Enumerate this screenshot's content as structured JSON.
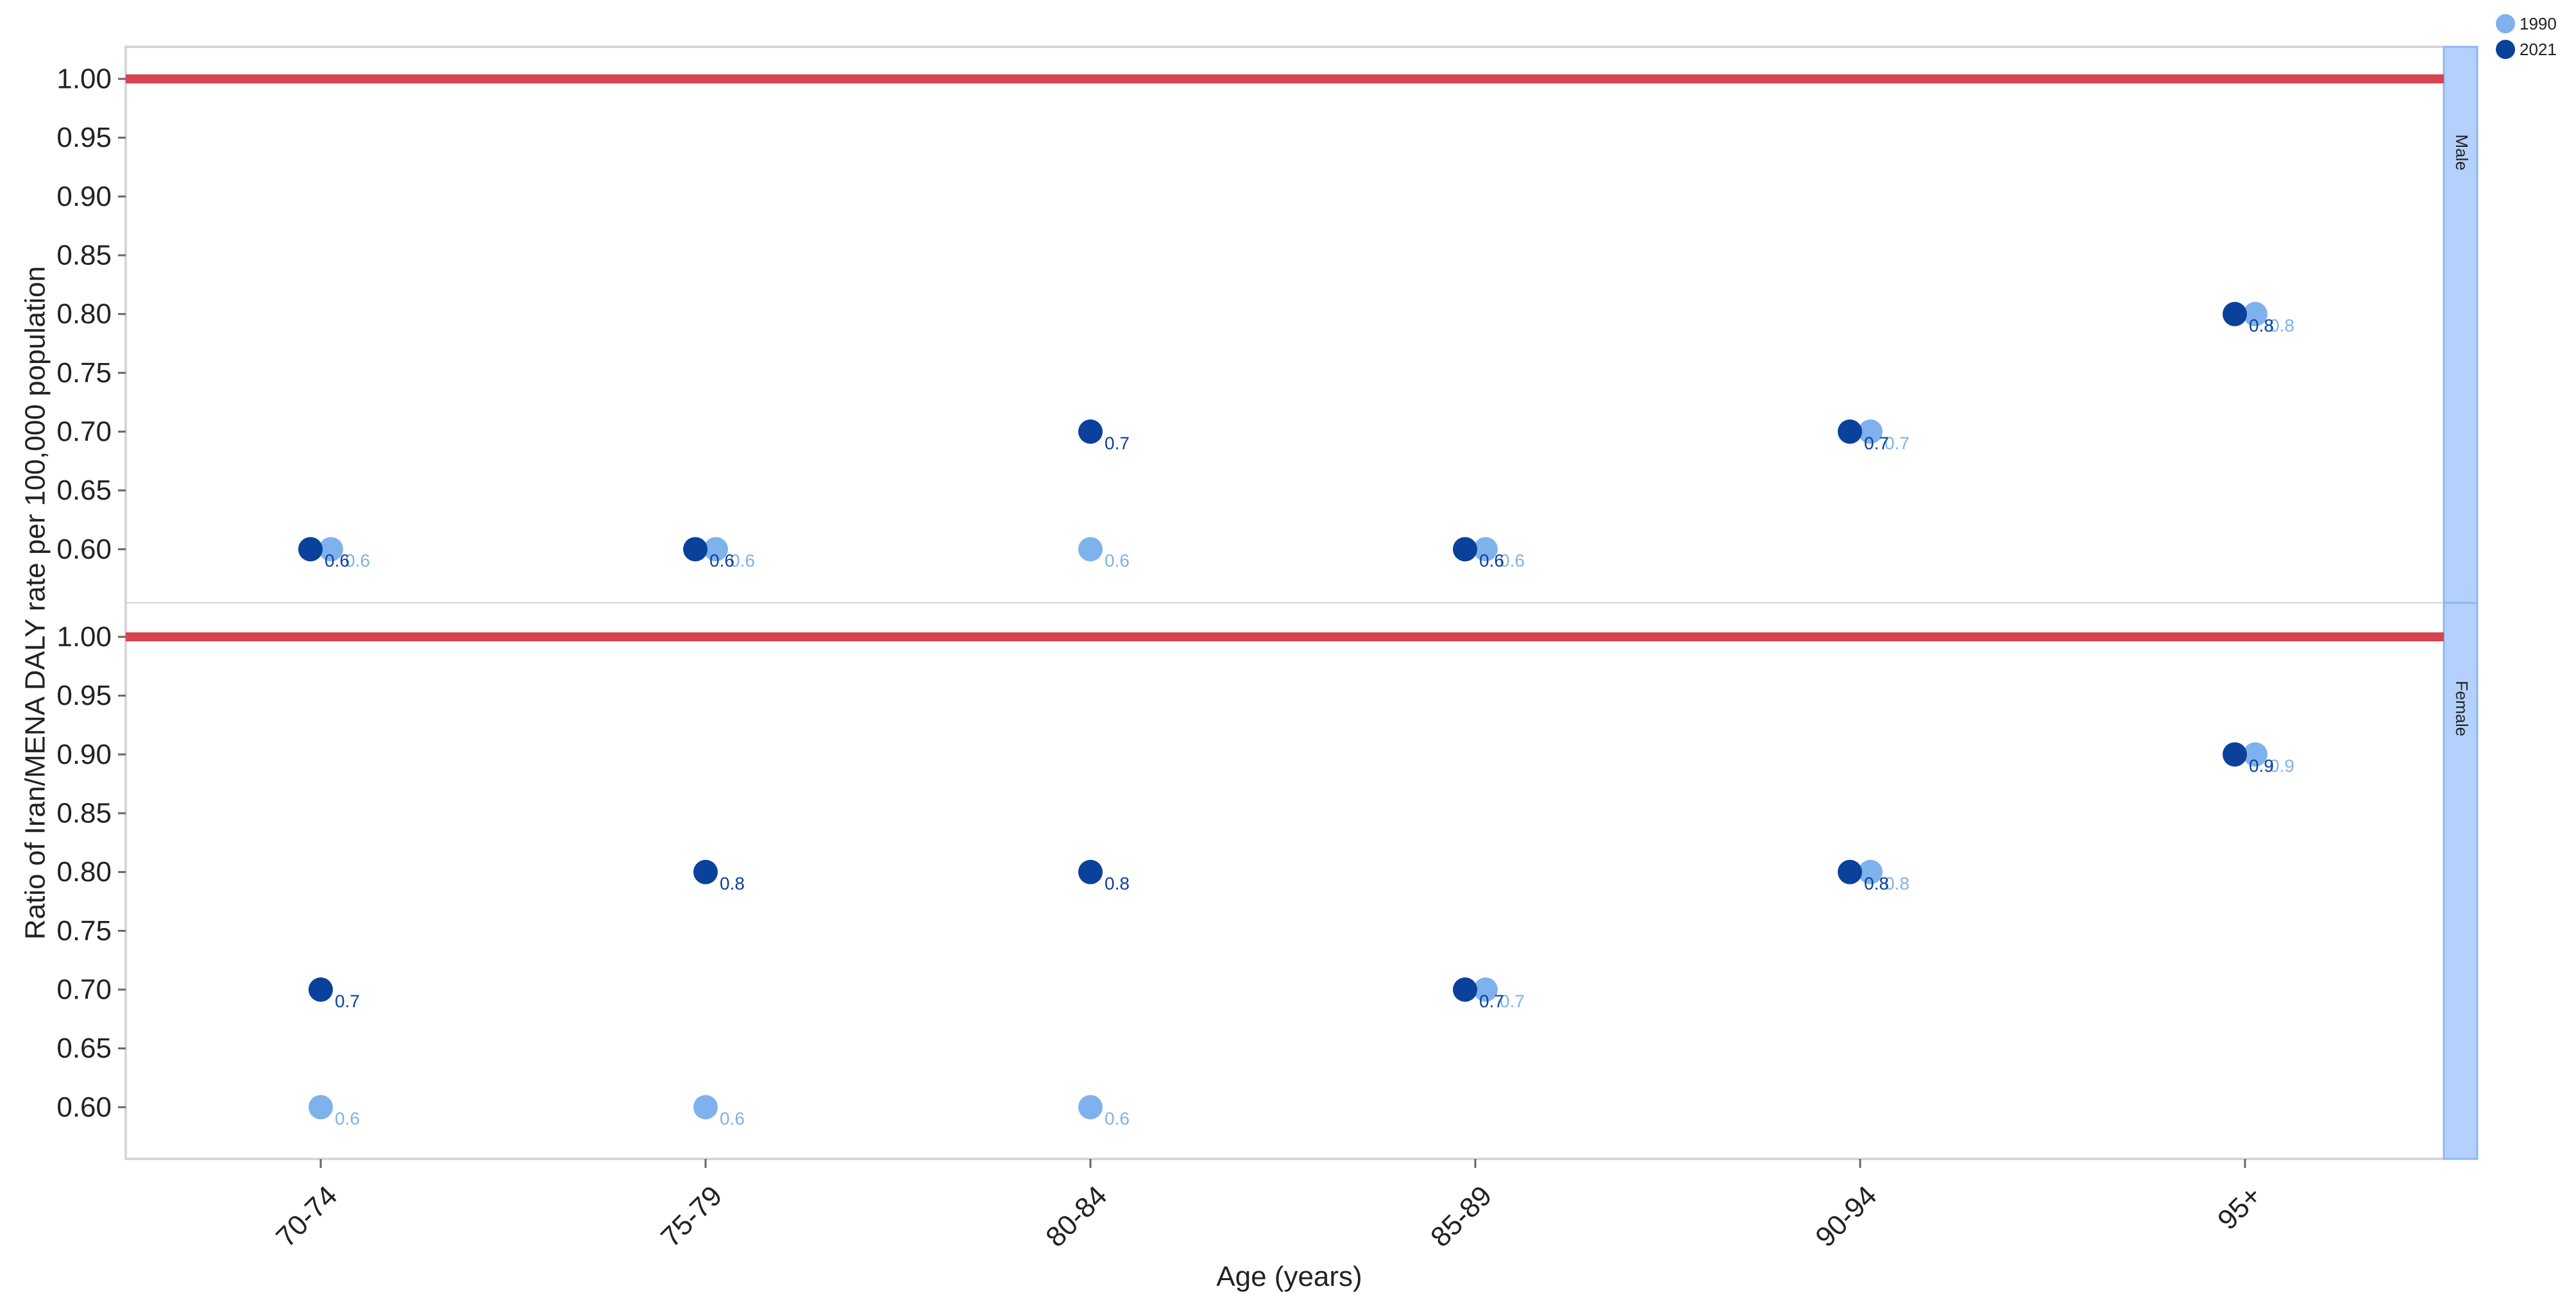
{
  "chart_data": {
    "type": "scatter",
    "title": "",
    "xlabel": "Age (years)",
    "ylabel": "Ratio of Iran/MENA DALY rate per 100,000 population",
    "categories": [
      "70-74",
      "75-79",
      "80-84",
      "85-89",
      "90-94",
      "95+"
    ],
    "ylim": [
      0.58,
      1.0
    ],
    "yticks": [
      "0.60",
      "0.65",
      "0.70",
      "0.75",
      "0.80",
      "0.85",
      "0.90",
      "0.95",
      "1.00"
    ],
    "reference_line": 1.0,
    "reference_color": "#d9434f",
    "grid": false,
    "legend_placement": "top-right",
    "legend": [
      {
        "label": "1990",
        "color": "#7fb2ec"
      },
      {
        "label": "2021",
        "color": "#0a419b"
      }
    ],
    "panels": [
      {
        "strip": "Male",
        "series": [
          {
            "name": "1990",
            "values": [
              0.6,
              0.6,
              0.6,
              0.6,
              0.7,
              0.8
            ],
            "labels": [
              "0.6",
              "0.6",
              "0.6",
              "0.6",
              "0.7",
              "0.8"
            ]
          },
          {
            "name": "2021",
            "values": [
              0.6,
              0.6,
              0.7,
              0.6,
              0.7,
              0.8
            ],
            "labels": [
              "0.6",
              "0.6",
              "0.7",
              "0.6",
              "0.7",
              "0.8"
            ]
          }
        ]
      },
      {
        "strip": "Female",
        "series": [
          {
            "name": "1990",
            "values": [
              0.6,
              0.6,
              0.6,
              0.7,
              0.8,
              0.9
            ],
            "labels": [
              "0.6",
              "0.6",
              "0.6",
              "0.7",
              "0.8",
              "0.9"
            ]
          },
          {
            "name": "2021",
            "values": [
              0.7,
              0.8,
              0.8,
              0.7,
              0.8,
              0.9
            ],
            "labels": [
              "0.7",
              "0.8",
              "0.8",
              "0.7",
              "0.8",
              "0.9"
            ]
          }
        ]
      }
    ]
  }
}
